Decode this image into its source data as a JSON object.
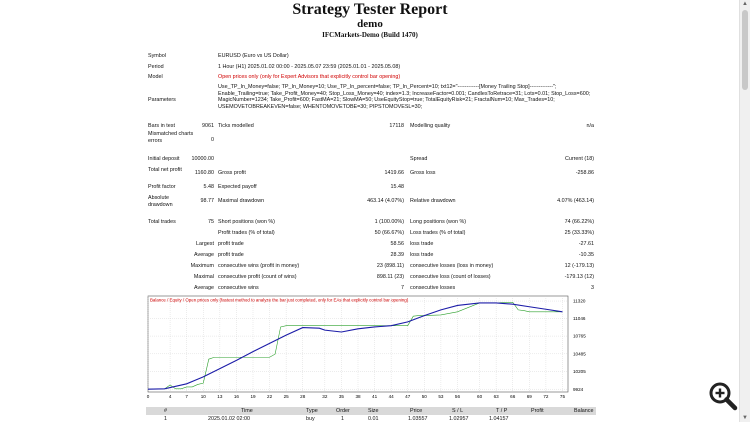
{
  "header": {
    "title": "Strategy Tester Report",
    "account": "demo",
    "server": "IFCMarkets-Demo (Build 1470)"
  },
  "info": {
    "symbol_label": "Symbol",
    "symbol_value": "EURUSD (Euro vs US Dollar)",
    "period_label": "Period",
    "period_value": "1 Hour (H1) 2025.01.02 00:00 - 2025.05.07 23:59 (2025.01.01 - 2025.05.08)",
    "model_label": "Model",
    "model_value": "Open prices only (only for Expert Advisors that explicitly control bar opening)",
    "params_label": "Parameters",
    "params_value": "Use_TP_In_Money=false; TP_In_Money=10; Use_TP_In_percent=false; TP_In_Percent=10; txt12=\"------------[Money Trailing Stop]-------------\"; Enable_Trailing=true; Take_Profit_Money=40; Stop_Loss_Money=40; index=1.3; IncreaseFactor=0.001; CandlesToRetrace=31; Lots=0.01; Stop_Loss=600; MagicNumber=1234; Take_Profit=600; FastMA=21; SlowMA=50; UseEquityStop=true; TotalEquityRisk=21; FractalNum=10; Max_Trades=10; USEMOVETOBREAKEVEN=false; WHENTOMOVETOBE=30; PIPSTOMOVESL=30;",
    "bars_label": "Bars in test",
    "bars_value": "9061",
    "ticks_label": "Ticks modelled",
    "ticks_value": "17118",
    "quality_label": "Modelling quality",
    "quality_value": "n/a",
    "mismatch_label": "Mismatched charts errors",
    "mismatch_value": "0"
  },
  "results": {
    "initial_deposit_label": "Initial deposit",
    "initial_deposit": "10000.00",
    "spread_label": "Spread",
    "spread": "Current (18)",
    "net_profit_label": "Total net profit",
    "net_profit": "1160.80",
    "gross_profit_label": "Gross profit",
    "gross_profit": "1419.66",
    "gross_loss_label": "Gross loss",
    "gross_loss": "-258.86",
    "profit_factor_label": "Profit factor",
    "profit_factor": "5.48",
    "expected_payoff_label": "Expected payoff",
    "expected_payoff": "15.48",
    "abs_dd_label": "Absolute drawdown",
    "abs_dd": "98.77",
    "max_dd_label": "Maximal drawdown",
    "max_dd": "463.14 (4.07%)",
    "rel_dd_label": "Relative drawdown",
    "rel_dd": "4.07% (463.14)",
    "total_trades_label": "Total trades",
    "total_trades": "75",
    "short_label": "Short positions (won %)",
    "short": "1 (100.00%)",
    "long_label": "Long positions (won %)",
    "long": "74 (66.22%)",
    "profit_trades_label": "Profit trades (% of total)",
    "profit_trades": "50 (66.67%)",
    "loss_trades_label": "Loss trades (% of total)",
    "loss_trades": "25 (33.33%)",
    "largest_label": "Largest",
    "largest_profit_label": "profit trade",
    "largest_profit": "58.56",
    "largest_loss_label": "loss trade",
    "largest_loss": "-27.61",
    "average_label": "Average",
    "avg_profit_label": "profit trade",
    "avg_profit": "28.39",
    "avg_loss_label": "loss trade",
    "avg_loss": "-10.35",
    "maximum_label": "Maximum",
    "max_wins_label": "consecutive wins (profit in money)",
    "max_wins": "23 (898.11)",
    "max_losses_label": "consecutive losses (loss in money)",
    "max_losses": "12 (-179.13)",
    "maximal_label": "Maximal",
    "maximal_profit_label": "consecutive profit (count of wins)",
    "maximal_profit": "898.11 (23)",
    "maximal_loss_label": "consecutive loss (count of losses)",
    "maximal_loss": "-179.13 (12)",
    "avg2_label": "Average",
    "avg_wins_label": "consecutive wins",
    "avg_wins": "7",
    "avg_losses_label": "consecutive losses",
    "avg_losses": "3"
  },
  "chart_data": {
    "type": "line",
    "title": "",
    "legend_text": "Balance / Equity / Open prices only (fastest method to analyze the bar just completed, only for EAs that explicitly control bar opening)",
    "x_ticks": [
      0,
      4,
      7,
      10,
      13,
      16,
      19,
      22,
      25,
      28,
      32,
      35,
      38,
      41,
      44,
      47,
      50,
      53,
      56,
      60,
      63,
      66,
      69,
      72,
      75
    ],
    "y_ticks": [
      9924,
      10205,
      10485,
      10765,
      11046,
      11320
    ],
    "xlim": [
      0,
      76
    ],
    "ylim": [
      9880,
      11400
    ],
    "series": [
      {
        "name": "Balance",
        "color": "#1c1ca8",
        "x": [
          0,
          3,
          7,
          10,
          13,
          16,
          19,
          22,
          25,
          28,
          31,
          32,
          35,
          38,
          41,
          44,
          47,
          50,
          53,
          56,
          60,
          63,
          66,
          69,
          72,
          75
        ],
        "y": [
          9924,
          9930,
          10010,
          10120,
          10250,
          10380,
          10520,
          10650,
          10780,
          10900,
          10890,
          10860,
          10830,
          10880,
          10910,
          10930,
          10990,
          11090,
          11180,
          11250,
          11290,
          11290,
          11270,
          11230,
          11190,
          11150
        ]
      },
      {
        "name": "Equity",
        "color": "#2ca02c",
        "x": [
          0,
          3,
          4,
          5,
          6,
          7,
          8,
          9,
          10,
          11,
          12,
          13,
          14,
          16,
          18,
          19,
          20,
          21,
          22,
          23,
          24,
          25,
          26,
          27,
          28,
          31,
          32,
          35,
          38,
          41,
          44,
          46,
          47,
          48,
          49,
          50,
          53,
          56,
          60,
          63,
          65,
          66,
          67,
          68,
          69,
          72,
          75
        ],
        "y": [
          9924,
          9930,
          9990,
          9930,
          9930,
          9960,
          9960,
          10000,
          10020,
          10400,
          10430,
          10430,
          10430,
          10430,
          10430,
          10430,
          10430,
          10430,
          10430,
          10480,
          10910,
          10930,
          10930,
          10930,
          10930,
          10930,
          10930,
          10930,
          10930,
          10930,
          10930,
          10930,
          10930,
          11080,
          11090,
          11090,
          11100,
          11150,
          11290,
          11290,
          11300,
          11300,
          11180,
          11170,
          11150,
          11150,
          11150
        ]
      }
    ]
  },
  "trades_table": {
    "headers": [
      "#",
      "Time",
      "Type",
      "Order",
      "Size",
      "Price",
      "S / L",
      "T / P",
      "Profit",
      "Balance"
    ],
    "first_row": [
      "1",
      "2025.01.02 02:00",
      "buy",
      "1",
      "0.01",
      "1.03557",
      "1.02957",
      "1.04157",
      "",
      ""
    ]
  },
  "colors": {
    "red_text": "#d00000",
    "balance": "#1c1ca8",
    "equity": "#2ca02c"
  },
  "icons": {
    "zoom": "zoom-in-icon"
  }
}
